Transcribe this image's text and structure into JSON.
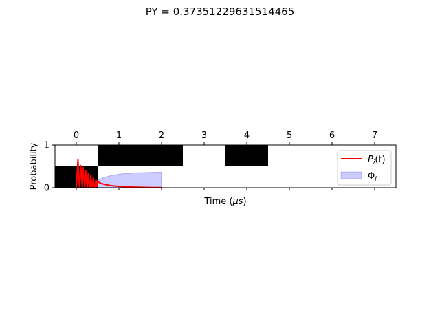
{
  "chart_data": {
    "type": "line",
    "title": "PY = 0.37351229631514465",
    "xlabel": "Time ($\\mu s$)",
    "ylabel": "Probability",
    "xlim": [
      -0.5,
      7.5
    ],
    "ylim": [
      0,
      1
    ],
    "x_ticks": [
      0,
      1,
      2,
      3,
      4,
      5,
      6,
      7
    ],
    "x_tick_labels": [
      "0",
      "1",
      "2",
      "3",
      "4",
      "5",
      "6",
      "7"
    ],
    "y_ticks": [
      0,
      1
    ],
    "y_tick_labels": [
      "0",
      "1"
    ],
    "grid": false,
    "legend_position": "right",
    "occupancy_blocks": [
      {
        "x0": -0.5,
        "x1": 0.5,
        "y0": 0,
        "y1": 0.5
      },
      {
        "x0": 0.5,
        "x1": 2.5,
        "y0": 0.5,
        "y1": 1.0
      },
      {
        "x0": 3.5,
        "x1": 4.5,
        "y0": 0.5,
        "y1": 1.0
      }
    ],
    "series": [
      {
        "name": "$P_i(t)$",
        "kind": "line",
        "color": "#ff0000",
        "x": [
          0.0,
          0.02,
          0.04,
          0.06,
          0.08,
          0.1,
          0.12,
          0.14,
          0.16,
          0.18,
          0.2,
          0.22,
          0.24,
          0.26,
          0.28,
          0.3,
          0.32,
          0.34,
          0.36,
          0.38,
          0.4,
          0.42,
          0.44,
          0.46,
          0.48,
          0.5,
          0.54,
          0.58,
          0.62,
          0.66,
          0.7,
          0.75,
          0.8,
          0.85,
          0.9,
          1.0,
          1.1,
          1.2,
          1.3,
          1.4,
          1.5,
          1.6,
          1.7,
          1.8,
          1.9,
          2.0
        ],
        "y": [
          0.0,
          0.35,
          0.66,
          0.2,
          0.0,
          0.52,
          0.3,
          0.0,
          0.47,
          0.22,
          0.0,
          0.4,
          0.15,
          0.0,
          0.34,
          0.1,
          0.0,
          0.29,
          0.07,
          0.0,
          0.24,
          0.04,
          0.0,
          0.19,
          0.03,
          0.15,
          0.12,
          0.1,
          0.09,
          0.08,
          0.07,
          0.06,
          0.05,
          0.045,
          0.04,
          0.03,
          0.025,
          0.02,
          0.016,
          0.013,
          0.01,
          0.008,
          0.006,
          0.005,
          0.004,
          0.003
        ]
      },
      {
        "name": "$\\Phi_i$",
        "kind": "area",
        "color": "#0000ff",
        "fill_opacity": 0.2,
        "x": [
          0.5,
          0.6,
          0.7,
          0.8,
          0.9,
          1.0,
          1.1,
          1.2,
          1.3,
          1.4,
          1.5,
          1.6,
          1.7,
          1.8,
          1.9,
          2.0
        ],
        "y": [
          0.17,
          0.22,
          0.255,
          0.28,
          0.3,
          0.315,
          0.327,
          0.336,
          0.343,
          0.348,
          0.352,
          0.355,
          0.358,
          0.36,
          0.362,
          0.363
        ]
      }
    ]
  },
  "legend": {
    "pi_label": "P",
    "pi_sub": "i",
    "pi_suffix": "(t)",
    "phi_label": "Φ",
    "phi_sub": "i"
  },
  "axis_text": {
    "xlabel_prefix": "Time (",
    "xlabel_mu": "μs",
    "xlabel_suffix": ")"
  }
}
